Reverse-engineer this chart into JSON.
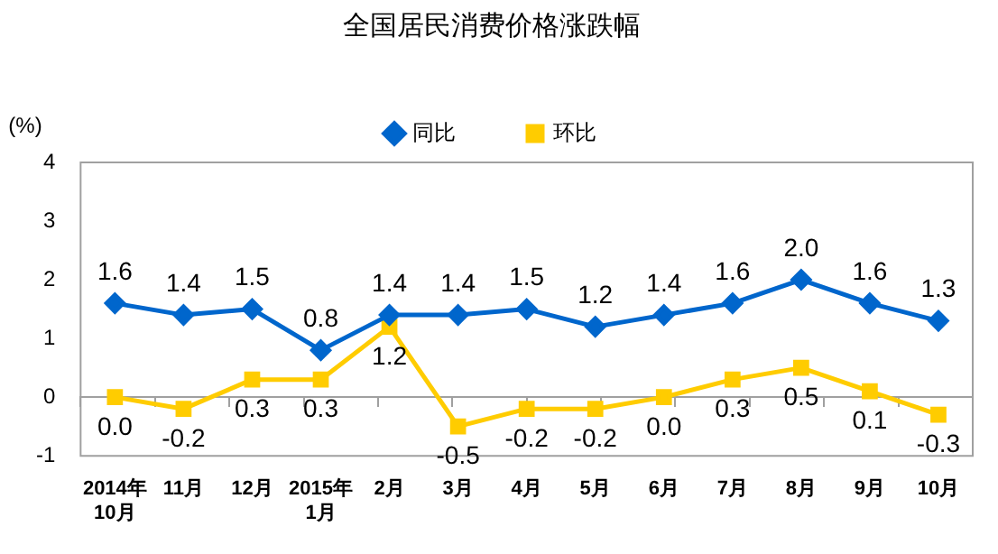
{
  "chart_data": {
    "type": "line",
    "title": "全国居民消费价格涨跌幅",
    "ylabel": "(%)",
    "categories": [
      "2014年\n10月",
      "11月",
      "12月",
      "2015年\n1月",
      "2月",
      "3月",
      "4月",
      "5月",
      "6月",
      "7月",
      "8月",
      "9月",
      "10月"
    ],
    "series": [
      {
        "name": "同比",
        "color": "#0066cc",
        "marker": "diamond",
        "values": [
          1.6,
          1.4,
          1.5,
          0.8,
          1.4,
          1.4,
          1.5,
          1.2,
          1.4,
          1.6,
          2.0,
          1.6,
          1.3
        ],
        "value_labels": [
          "1.6",
          "1.4",
          "1.5",
          "0.8",
          "1.4",
          "1.4",
          "1.5",
          "1.2",
          "1.4",
          "1.6",
          "2.0",
          "1.6",
          "1.3"
        ]
      },
      {
        "name": "环比",
        "color": "#ffcc00",
        "marker": "square",
        "values": [
          0.0,
          -0.2,
          0.3,
          0.3,
          1.2,
          -0.5,
          -0.2,
          -0.2,
          0.0,
          0.3,
          0.5,
          0.1,
          -0.3
        ],
        "value_labels": [
          "0.0",
          "-0.2",
          "0.3",
          "0.3",
          "1.2",
          "-0.5",
          "-0.2",
          "-0.2",
          "0.0",
          "0.3",
          "0.5",
          "0.1",
          "-0.3"
        ]
      }
    ],
    "ylim": [
      -1,
      4
    ],
    "yticks": [
      -1,
      0,
      1,
      2,
      3,
      4
    ],
    "legend": "top"
  }
}
